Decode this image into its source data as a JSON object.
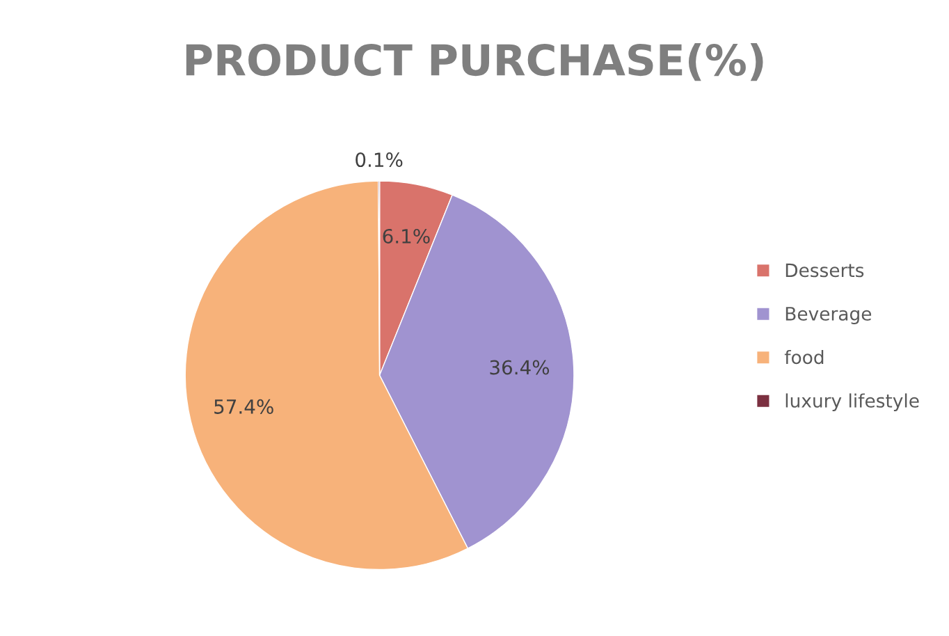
{
  "chart_data": {
    "type": "pie",
    "title": "PRODUCT PURCHASE(%)",
    "categories": [
      "Desserts",
      "Beverage",
      "food",
      "luxury lifestyle"
    ],
    "values": [
      6.1,
      36.4,
      57.4,
      0.1
    ],
    "value_labels": [
      "6.1%",
      "36.4%",
      "57.4%",
      "0.1%"
    ],
    "colors": [
      "#d9736b",
      "#a093d0",
      "#f7b27a",
      "#7b3040"
    ],
    "legend": "right"
  }
}
